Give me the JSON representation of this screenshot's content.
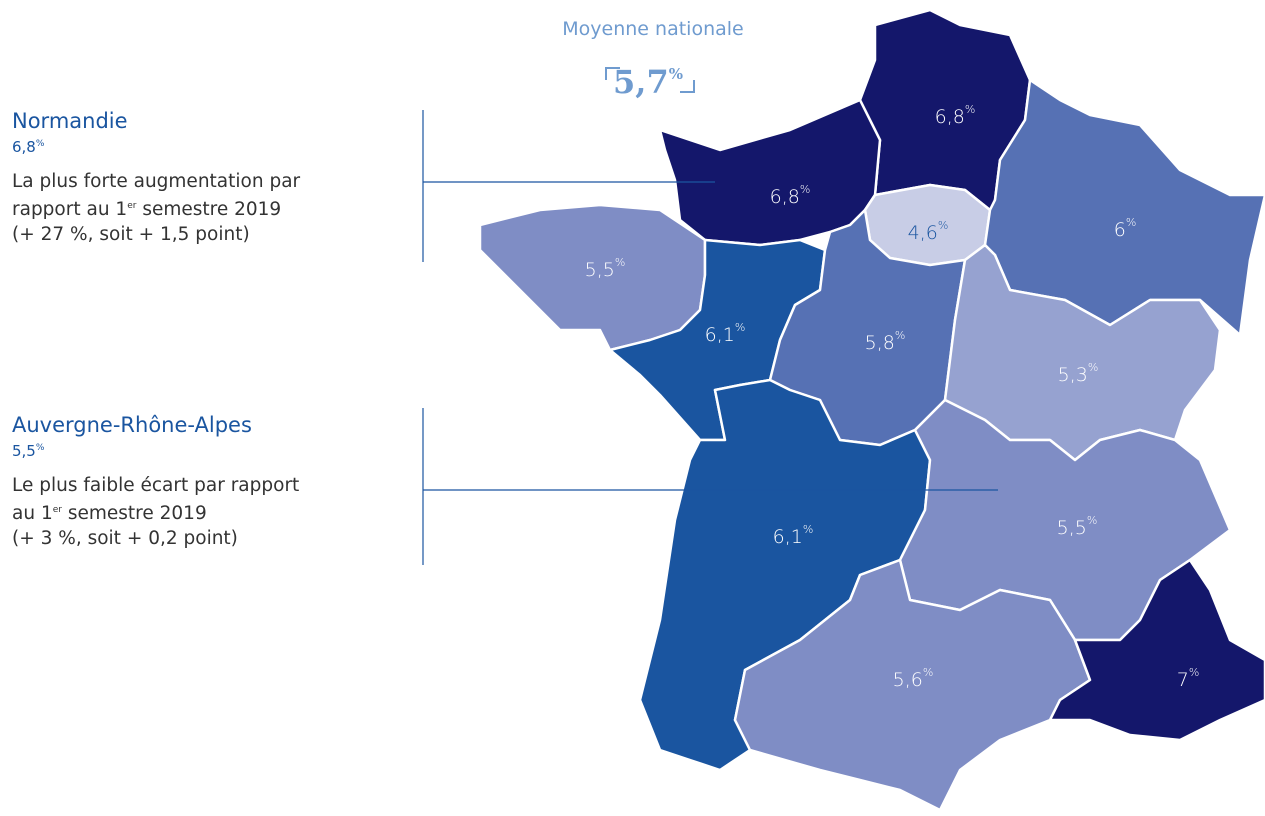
{
  "national": {
    "title": "Moyenne nationale",
    "value": "5,7",
    "unit": "%"
  },
  "callouts": [
    {
      "region": "Normandie",
      "value": "6,8",
      "unit": "%",
      "line1": "La plus forte augmentation par",
      "line2_start": "rapport au 1",
      "line2_sup": "er",
      "line2_end": " semestre 2019",
      "line3": "(+ 27 %, soit + 1,5 point)"
    },
    {
      "region": "Auvergne-Rhône-Alpes",
      "value": "5,5",
      "unit": "%",
      "line1": "Le plus faible écart par rapport",
      "line2_start": "au 1",
      "line2_sup": "er",
      "line2_end": " semestre 2019",
      "line3": "(+ 3 %, soit + 0,2 point)"
    }
  ],
  "regions": [
    {
      "value": "6,8",
      "unit": "%",
      "color": "#14176b",
      "text_color": "#ffffff"
    },
    {
      "value": "6,8",
      "unit": "%",
      "color": "#14176b",
      "text_color": "#ffffff"
    },
    {
      "value": "4,6",
      "unit": "%",
      "color": "#c8cde6",
      "text_color": "#1a55a0"
    },
    {
      "value": "6",
      "unit": "%",
      "color": "#5671b4",
      "text_color": "#ffffff"
    },
    {
      "value": "5,5",
      "unit": "%",
      "color": "#7f8dc5",
      "text_color": "#ffffff"
    },
    {
      "value": "6,1",
      "unit": "%",
      "color": "#1a55a0",
      "text_color": "#ffffff"
    },
    {
      "value": "5,8",
      "unit": "%",
      "color": "#5671b4",
      "text_color": "#ffffff"
    },
    {
      "value": "5,3",
      "unit": "%",
      "color": "#96a2d0",
      "text_color": "#ffffff"
    },
    {
      "value": "6,1",
      "unit": "%",
      "color": "#1a55a0",
      "text_color": "#ffffff"
    },
    {
      "value": "5,5",
      "unit": "%",
      "color": "#7f8dc5",
      "text_color": "#ffffff"
    },
    {
      "value": "5,6",
      "unit": "%",
      "color": "#7f8dc5",
      "text_color": "#ffffff"
    },
    {
      "value": "7",
      "unit": "%",
      "color": "#14176b",
      "text_color": "#ffffff"
    }
  ]
}
